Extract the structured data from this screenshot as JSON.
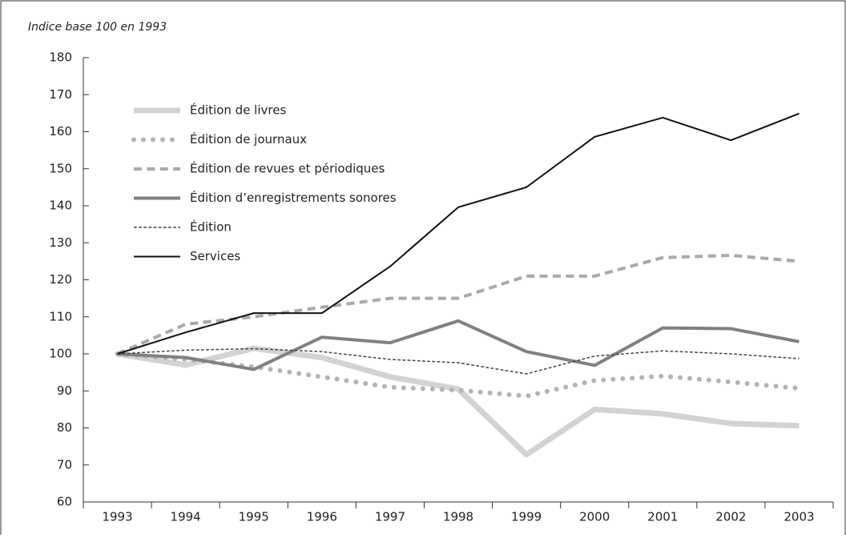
{
  "chart_data": {
    "type": "line",
    "y_label": "Indice base 100 en 1993",
    "categories": [
      "1993",
      "1994",
      "1995",
      "1996",
      "1997",
      "1998",
      "1999",
      "2000",
      "2001",
      "2002",
      "2003"
    ],
    "series": [
      {
        "name": "Édition de livres",
        "color": "#d3d3d3",
        "width": 7,
        "dash": "solid",
        "values": [
          100,
          97,
          101.5,
          99,
          93.8,
          90.5,
          72.8,
          85,
          83.8,
          81.2,
          80.6
        ]
      },
      {
        "name": "Édition de journaux",
        "color": "#b3b3b3",
        "width": 6,
        "dash": "dotted",
        "values": [
          100,
          98.5,
          96.5,
          93.8,
          91,
          90.2,
          88.6,
          92.8,
          94,
          92.4,
          90.7
        ]
      },
      {
        "name": "Édition de revues et périodiques",
        "color": "#a9a9a9",
        "width": 4,
        "dash": "dashed",
        "values": [
          100,
          108,
          110,
          112.6,
          115,
          115,
          121,
          121,
          126,
          126.6,
          125
        ]
      },
      {
        "name": "Édition d’enregistrements sonores",
        "color": "#808080",
        "width": 4,
        "dash": "solid",
        "values": [
          100,
          99,
          95.8,
          104.5,
          103,
          108.9,
          100.6,
          96.9,
          107,
          106.8,
          103.3
        ]
      },
      {
        "name": "Édition",
        "color": "#444444",
        "width": 1.5,
        "dash": "dashed",
        "values": [
          100,
          101,
          101.4,
          100.6,
          98.5,
          97.6,
          94.6,
          99.4,
          100.8,
          100,
          98.7
        ]
      },
      {
        "name": "Services",
        "color": "#111111",
        "width": 2,
        "dash": "solid",
        "values": [
          100,
          105.8,
          111,
          111,
          123.6,
          139.6,
          145,
          158.6,
          163.8,
          157.7,
          164.9
        ]
      }
    ],
    "ylim": [
      60,
      180
    ],
    "yticks": [
      60,
      70,
      80,
      90,
      100,
      110,
      120,
      130,
      140,
      150,
      160,
      170,
      180
    ],
    "legend": "upper left",
    "grid": false
  }
}
